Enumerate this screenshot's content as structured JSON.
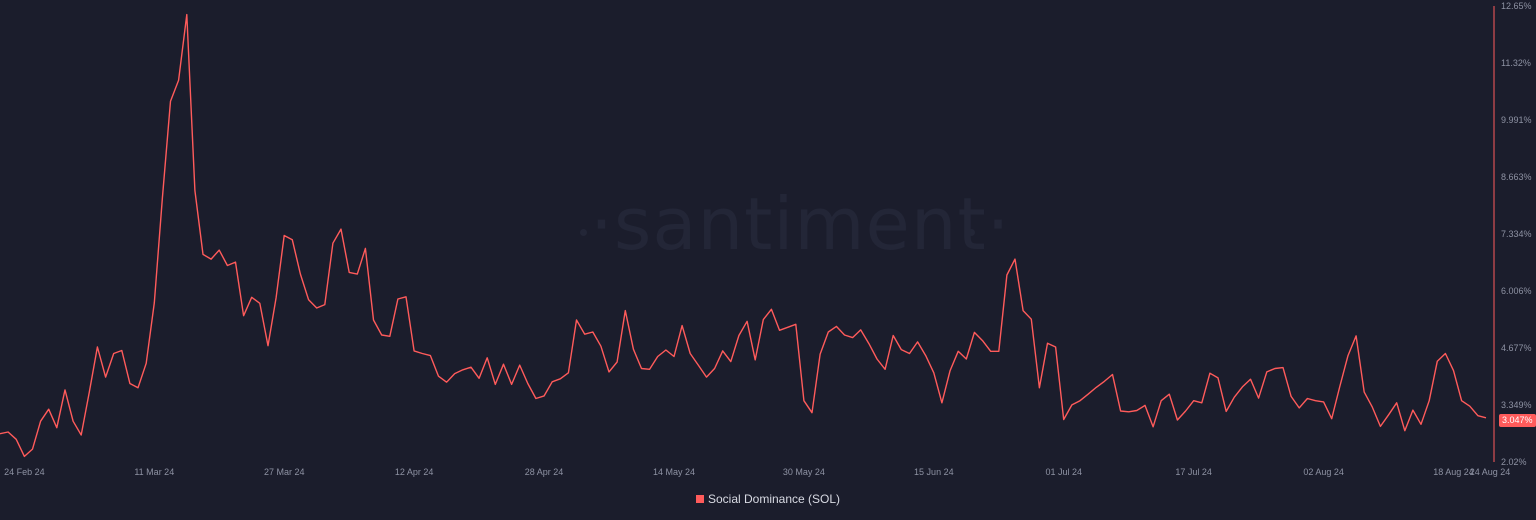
{
  "watermark": "·santiment·",
  "legend": {
    "label": "Social Dominance (SOL)",
    "color": "#ff5b5b"
  },
  "last_value_label": "3.047%",
  "colors": {
    "background": "#1b1d2c",
    "line": "#ff5b5b",
    "axis": "#ff5b5b",
    "text": "#8e92a3"
  },
  "chart_data": {
    "type": "line",
    "series": [
      {
        "name": "Social Dominance (SOL)",
        "values": [
          2.68,
          2.72,
          2.55,
          2.15,
          2.32,
          2.97,
          3.25,
          2.82,
          3.7,
          2.97,
          2.65,
          3.65,
          4.7,
          4.0,
          4.55,
          4.62,
          3.85,
          3.75,
          4.32,
          5.73,
          8.18,
          10.43,
          10.92,
          12.45,
          8.35,
          6.86,
          6.75,
          6.96,
          6.6,
          6.68,
          5.43,
          5.86,
          5.72,
          4.73,
          5.85,
          7.3,
          7.2,
          6.4,
          5.8,
          5.61,
          5.69,
          7.12,
          7.45,
          6.44,
          6.4,
          7.0,
          5.33,
          4.98,
          4.95,
          5.82,
          5.87,
          4.61,
          4.55,
          4.5,
          4.02,
          3.88,
          4.08,
          4.17,
          4.23,
          3.97,
          4.45,
          3.83,
          4.3,
          3.83,
          4.28,
          3.85,
          3.5,
          3.56,
          3.89,
          3.96,
          4.1,
          5.33,
          5.0,
          5.05,
          4.72,
          4.12,
          4.35,
          5.55,
          4.65,
          4.2,
          4.18,
          4.48,
          4.63,
          4.48,
          5.2,
          4.55,
          4.28,
          4.0,
          4.2,
          4.61,
          4.36,
          4.97,
          5.3,
          4.4,
          5.34,
          5.58,
          5.09,
          5.16,
          5.23,
          3.45,
          3.17,
          4.53,
          5.05,
          5.18,
          4.98,
          4.92,
          5.1,
          4.78,
          4.42,
          4.18,
          4.97,
          4.64,
          4.55,
          4.82,
          4.5,
          4.1,
          3.4,
          4.15,
          4.6,
          4.42,
          5.04,
          4.85,
          4.6,
          4.6,
          6.38,
          6.75,
          5.55,
          5.35,
          3.75,
          4.79,
          4.7,
          3.01,
          3.35,
          3.45,
          3.6,
          3.76,
          3.9,
          4.06,
          3.21,
          3.19,
          3.22,
          3.34,
          2.84,
          3.45,
          3.6,
          3.0,
          3.21,
          3.45,
          3.4,
          4.09,
          3.98,
          3.2,
          3.53,
          3.77,
          3.95,
          3.51,
          4.12,
          4.2,
          4.22,
          3.55,
          3.28,
          3.5,
          3.45,
          3.42,
          3.03,
          3.78,
          4.5,
          4.96,
          3.65,
          3.3,
          2.85,
          3.12,
          3.4,
          2.75,
          3.23,
          2.9,
          3.45,
          4.37,
          4.55,
          4.15,
          3.45,
          3.32,
          3.1,
          3.05
        ]
      }
    ],
    "x_range": [
      "2024-02-21",
      "2024-08-22"
    ],
    "x_ticks": [
      "24 Feb 24",
      "11 Mar 24",
      "27 Mar 24",
      "12 Apr 24",
      "28 Apr 24",
      "14 May 24",
      "30 May 24",
      "15 Jun 24",
      "01 Jul 24",
      "17 Jul 24",
      "02 Aug 24",
      "18 Aug 24",
      "24 Aug 24"
    ],
    "y_ticks": [
      "12.65%",
      "11.32%",
      "9.991%",
      "8.663%",
      "7.334%",
      "6.006%",
      "4.677%",
      "3.349%",
      "2.02%"
    ],
    "ylim": [
      2.02,
      12.65
    ],
    "y_axis_position": "right",
    "grid": false,
    "legend_position": "bottom"
  }
}
